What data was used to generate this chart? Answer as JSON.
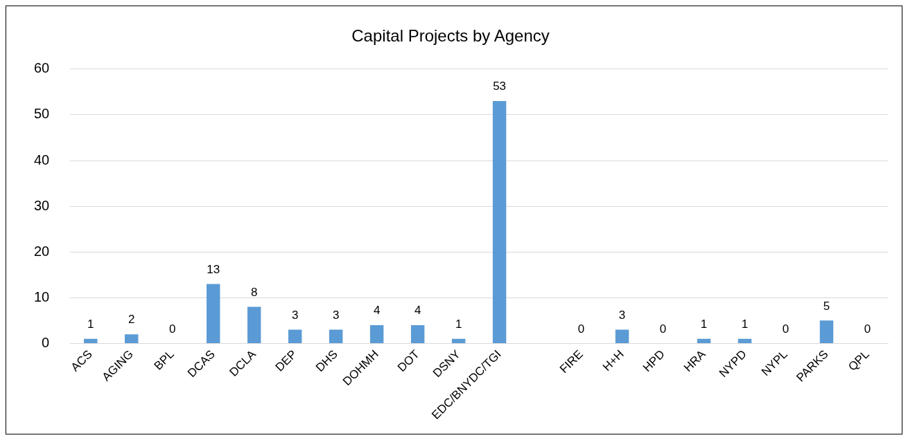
{
  "chart_data": {
    "type": "bar",
    "title": "Capital Projects by Agency",
    "categories": [
      "ACS",
      "AGING",
      "BPL",
      "DCAS",
      "DCLA",
      "DEP",
      "DHS",
      "DOHMH",
      "DOT",
      "DSNY",
      "EDC/BNYDC/TGI",
      null,
      "FIRE",
      "H+H",
      "HPD",
      "HRA",
      "NYPD",
      "NYPL",
      "PARKS",
      "QPL"
    ],
    "values": [
      1,
      2,
      0,
      13,
      8,
      3,
      3,
      4,
      4,
      1,
      53,
      null,
      0,
      3,
      0,
      1,
      1,
      0,
      5,
      0
    ],
    "color": "#5b9bd5",
    "ylim": [
      0,
      60
    ],
    "yticks": [
      0,
      10,
      20,
      30,
      40,
      50,
      60
    ],
    "grid": "y",
    "data_labels": true,
    "legend": false
  }
}
